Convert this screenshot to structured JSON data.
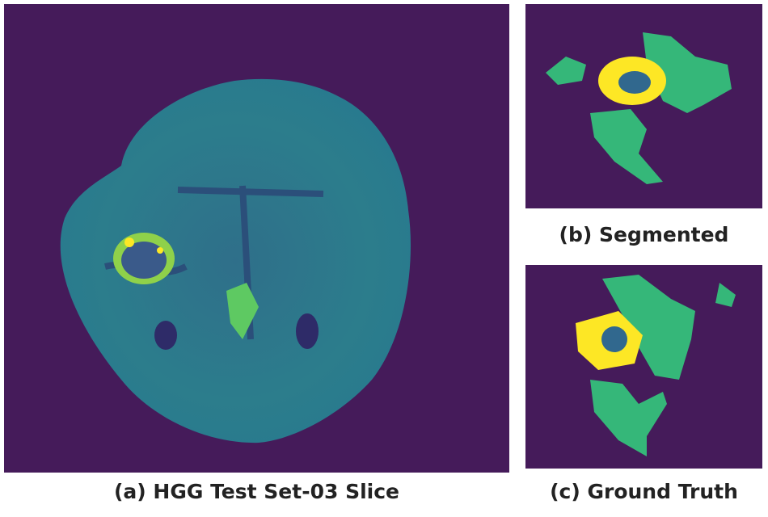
{
  "figure": {
    "panels": [
      {
        "caption": "(a) HGG Test Set-03 Slice"
      },
      {
        "caption": "(b) Segmented"
      },
      {
        "caption": "(c) Ground Truth"
      }
    ]
  }
}
